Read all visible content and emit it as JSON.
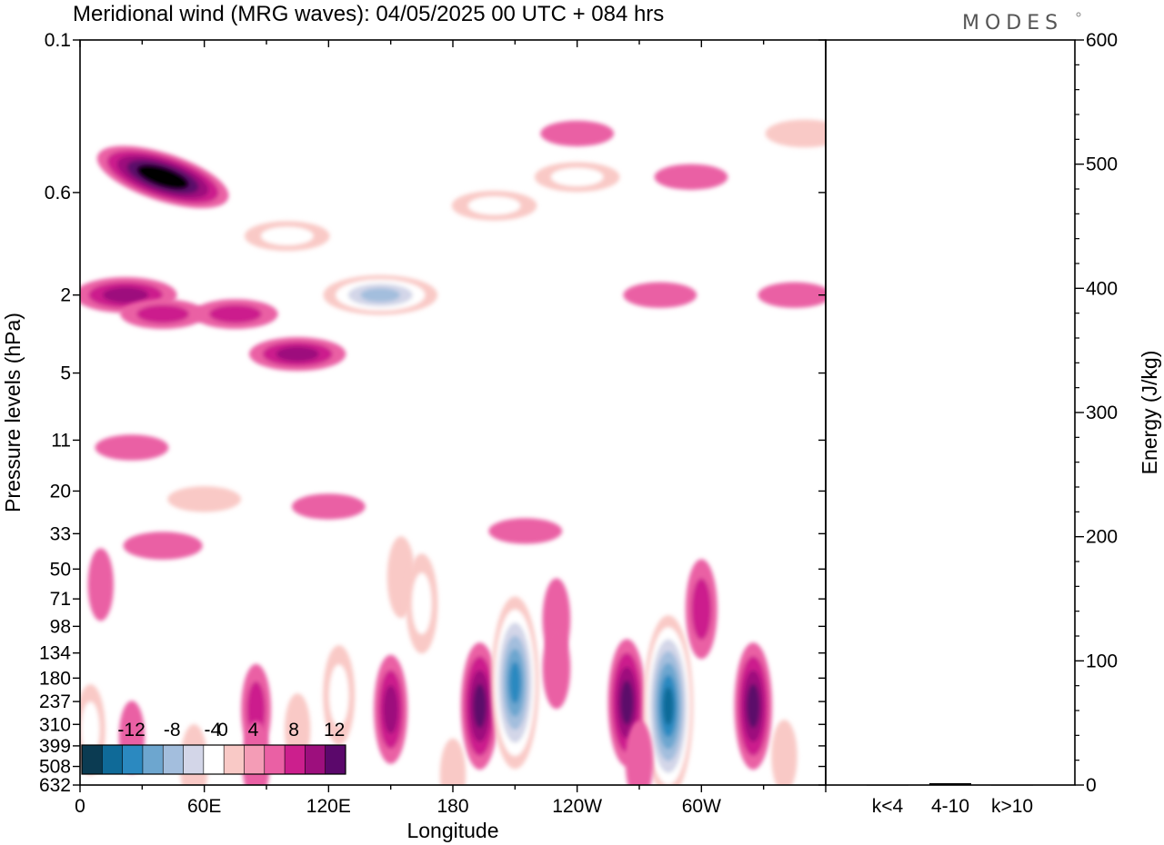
{
  "header": {
    "title": "Meridional wind (MRG waves):  04/05/2025  00 UTC  + 084 hrs",
    "brand": "MODES"
  },
  "chart_data": [
    {
      "type": "heatmap",
      "xlabel": "Longitude",
      "ylabel": "Pressure levels (hPa)",
      "x_ticks": [
        "0",
        "60E",
        "120E",
        "180",
        "120W",
        "60W"
      ],
      "x_range_deg": [
        0,
        360
      ],
      "y_ticks": [
        "0.1",
        "0.6",
        "2",
        "5",
        "11",
        "20",
        "33",
        "50",
        "71",
        "98",
        "134",
        "180",
        "237",
        "310",
        "399",
        "508",
        "632"
      ],
      "y_scale": "log",
      "colorbar": {
        "labels": [
          "-12",
          "-8",
          "-4",
          "0",
          "4",
          "8",
          "12"
        ],
        "levels": [
          -16,
          -14,
          -12,
          -10,
          -8,
          -6,
          -4,
          -2,
          2,
          4,
          6,
          8,
          10,
          12,
          14,
          16
        ],
        "colors": [
          "#0b3b52",
          "#0f6a98",
          "#2b89c0",
          "#6da6cf",
          "#a3bedd",
          "#d3d6e8",
          "#ffffff",
          "#f9c9c6",
          "#f49cb6",
          "#ea60a4",
          "#cc1f8d",
          "#9d0f7d",
          "#5b086b"
        ]
      },
      "features": [
        {
          "lon": 40,
          "p": 0.5,
          "value": 13
        },
        {
          "lon": 22,
          "p": 2,
          "value": 7
        },
        {
          "lon": 40,
          "p": 2.5,
          "value": 4
        },
        {
          "lon": 75,
          "p": 2.5,
          "value": 4
        },
        {
          "lon": 105,
          "p": 4,
          "value": 6
        },
        {
          "lon": 25,
          "p": 12,
          "value": 2
        },
        {
          "lon": 240,
          "p": 0.3,
          "value": 2
        },
        {
          "lon": 280,
          "p": 2,
          "value": 2
        },
        {
          "lon": 345,
          "p": 2,
          "value": 2
        },
        {
          "lon": 295,
          "p": 0.5,
          "value": 2
        },
        {
          "lon": 100,
          "p": 1,
          "value": -4
        },
        {
          "lon": 145,
          "p": 2,
          "value": -9
        },
        {
          "lon": 200,
          "p": 0.7,
          "value": -4
        },
        {
          "lon": 240,
          "p": 0.5,
          "value": -4
        },
        {
          "lon": 350,
          "p": 0.3,
          "value": -3
        },
        {
          "lon": 155,
          "p": 55,
          "value": -3
        },
        {
          "lon": 60,
          "p": 22,
          "value": -2
        },
        {
          "lon": 165,
          "p": 75,
          "value": -5
        },
        {
          "lon": 120,
          "p": 24,
          "value": 2
        },
        {
          "lon": 40,
          "p": 38,
          "value": 3
        },
        {
          "lon": 215,
          "p": 32,
          "value": 2
        },
        {
          "lon": 230,
          "p": 90,
          "value": 3
        },
        {
          "lon": 300,
          "p": 80,
          "value": 5
        },
        {
          "lon": 10,
          "p": 60,
          "value": 2
        },
        {
          "lon": 230,
          "p": 160,
          "value": 3
        },
        {
          "lon": 85,
          "p": 260,
          "value": 4
        },
        {
          "lon": 105,
          "p": 330,
          "value": -2
        },
        {
          "lon": 125,
          "p": 220,
          "value": -5
        },
        {
          "lon": 150,
          "p": 260,
          "value": 6
        },
        {
          "lon": 193,
          "p": 250,
          "value": 8
        },
        {
          "lon": 210,
          "p": 190,
          "value": -13
        },
        {
          "lon": 264,
          "p": 240,
          "value": 8
        },
        {
          "lon": 284,
          "p": 250,
          "value": -14
        },
        {
          "lon": 325,
          "p": 250,
          "value": 8
        },
        {
          "lon": 5,
          "p": 330,
          "value": -4
        },
        {
          "lon": 25,
          "p": 360,
          "value": 2
        },
        {
          "lon": 55,
          "p": 500,
          "value": -3
        },
        {
          "lon": 85,
          "p": 480,
          "value": 3
        },
        {
          "lon": 180,
          "p": 560,
          "value": -2
        },
        {
          "lon": 270,
          "p": 480,
          "value": 3
        },
        {
          "lon": 340,
          "p": 450,
          "value": -2
        }
      ]
    },
    {
      "type": "bar",
      "categories": [
        "k<4",
        "4-10",
        "k>10"
      ],
      "values": [
        0.3,
        1.5,
        0.3
      ],
      "ylabel": "Energy (J/kg)",
      "ylim": [
        0,
        600
      ],
      "y_ticks": [
        "0",
        "100",
        "200",
        "300",
        "400",
        "500",
        "600"
      ]
    }
  ]
}
